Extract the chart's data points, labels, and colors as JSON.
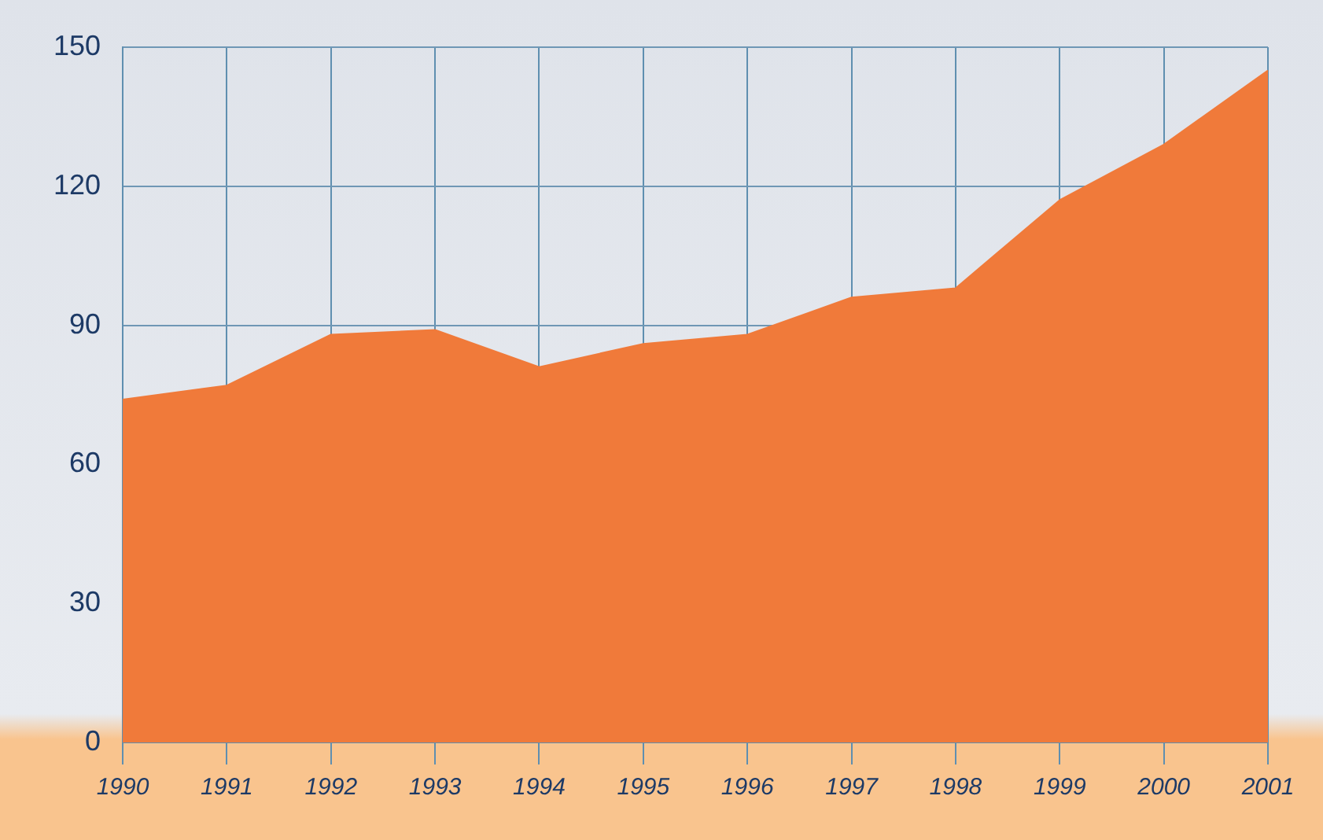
{
  "chart_data": {
    "type": "area",
    "categories": [
      "1990",
      "1991",
      "1992",
      "1993",
      "1994",
      "1995",
      "1996",
      "1997",
      "1998",
      "1999",
      "2000",
      "2001"
    ],
    "series": [
      {
        "color": "#f07a3a",
        "values": [
          74,
          77,
          88,
          89,
          81,
          86,
          88,
          96,
          98,
          117,
          129,
          145
        ]
      }
    ],
    "ylim": [
      0,
      150
    ],
    "yticks": [
      0,
      30,
      60,
      90,
      120,
      150
    ],
    "grid": true,
    "legend": false
  }
}
